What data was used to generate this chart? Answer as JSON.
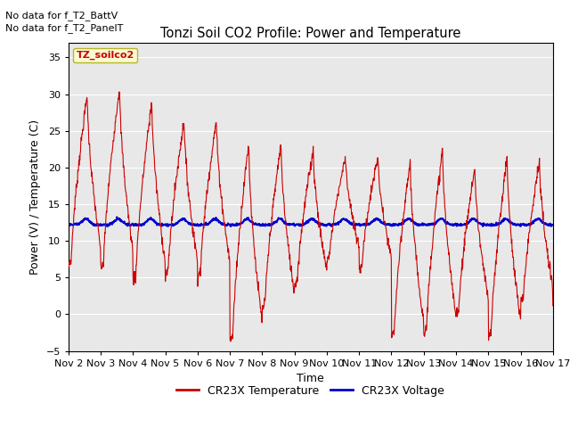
{
  "title": "Tonzi Soil CO2 Profile: Power and Temperature",
  "xlabel": "Time",
  "ylabel": "Power (V) / Temperature (C)",
  "top_left_text_line1": "No data for f_T2_BattV",
  "top_left_text_line2": "No data for f_T2_PanelT",
  "legend_box_label": "TZ_soilco2",
  "ylim": [
    -5,
    37
  ],
  "yticks": [
    -5,
    0,
    5,
    10,
    15,
    20,
    25,
    30,
    35
  ],
  "xtick_labels": [
    "Nov 2",
    "Nov 3",
    "Nov 4",
    "Nov 5",
    "Nov 6",
    "Nov 7",
    "Nov 8",
    "Nov 9",
    "Nov 10",
    "Nov 11",
    "Nov 12",
    "Nov 13",
    "Nov 14",
    "Nov 15",
    "Nov 16",
    "Nov 17"
  ],
  "bg_color": "#e8e8e8",
  "legend_entries": [
    "CR23X Temperature",
    "CR23X Voltage"
  ],
  "legend_colors": [
    "#cc0000",
    "#0000cc"
  ],
  "temp_color": "#cc0000",
  "volt_color": "#0000cc",
  "temp_linewidth": 0.8,
  "volt_linewidth": 1.5,
  "n_days": 15,
  "samples_per_day": 96,
  "day_peaks": [
    30,
    31,
    29,
    26.5,
    26.5,
    23.5,
    23.3,
    22.5,
    21.5,
    21.5,
    21,
    22.5,
    20,
    21.5,
    21
  ],
  "day_troughs": [
    6.5,
    6.0,
    4.5,
    5.0,
    5.0,
    -4.0,
    0.5,
    4.0,
    7.5,
    6.0,
    -3.5,
    -3.0,
    0.0,
    -3.5,
    1.5
  ],
  "peak_hour": 14,
  "trough_hour": 2,
  "volt_base": 12.2,
  "volt_amp": 0.8,
  "volt_peak_hour": 13
}
